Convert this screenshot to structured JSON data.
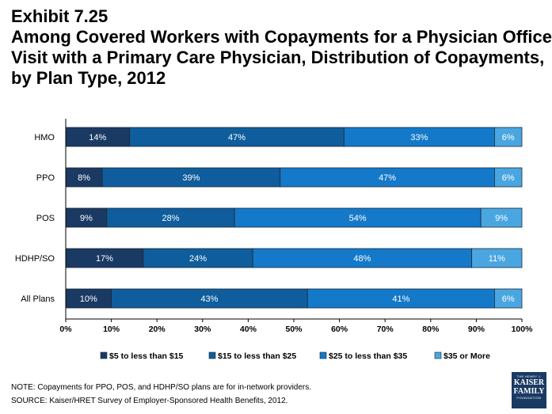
{
  "title": {
    "exhibit": "Exhibit 7.25",
    "lines": [
      "Among Covered Workers with Copayments for a Physician Office",
      "Visit with a Primary Care Physician, Distribution of Copayments,",
      "by Plan Type, 2012"
    ]
  },
  "chart_data": {
    "type": "bar",
    "orientation": "horizontal",
    "stacked": true,
    "categories": [
      "HMO",
      "PPO",
      "POS",
      "HDHP/SO",
      "All Plans"
    ],
    "series": [
      {
        "name": "$5 to less than $15",
        "values": [
          14,
          8,
          9,
          17,
          10
        ],
        "color": "#1a3a64"
      },
      {
        "name": "$15 to less than $25",
        "values": [
          47,
          39,
          28,
          24,
          43
        ],
        "color": "#0f5d9c"
      },
      {
        "name": "$25 to less than $35",
        "values": [
          33,
          47,
          54,
          48,
          41
        ],
        "color": "#1479c9"
      },
      {
        "name": "$35 or More",
        "values": [
          6,
          6,
          9,
          11,
          6
        ],
        "color": "#4aa6e0"
      }
    ],
    "value_labels": [
      [
        "14%",
        "47%",
        "33%",
        "6%"
      ],
      [
        "8%",
        "39%",
        "47%",
        "6%"
      ],
      [
        "9%",
        "28%",
        "54%",
        "9%"
      ],
      [
        "17%",
        "24%",
        "48%",
        "11%"
      ],
      [
        "10%",
        "43%",
        "41%",
        "6%"
      ]
    ],
    "xlim": [
      0,
      100
    ],
    "xticks": [
      "0%",
      "10%",
      "20%",
      "30%",
      "40%",
      "50%",
      "60%",
      "70%",
      "80%",
      "90%",
      "100%"
    ],
    "grid": false,
    "legend_position": "bottom"
  },
  "notes": {
    "note": "NOTE: Copayments for PPO, POS, and HDHP/SO plans are for in-network providers.",
    "source": "SOURCE:  Kaiser/HRET Survey of Employer-Sponsored Health Benefits, 2012."
  },
  "logo": {
    "line1": "THE HENRY J.",
    "line2": "KAISER",
    "line3": "FAMILY",
    "line4": "FOUNDATION"
  }
}
